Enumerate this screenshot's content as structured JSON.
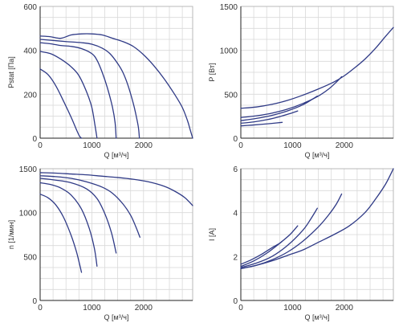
{
  "chart_data": [
    {
      "type": "line",
      "xlabel": "Q [м³/ч]",
      "ylabel": "Pstat [Па]",
      "xlim": [
        0,
        2950
      ],
      "ylim": [
        0,
        600
      ],
      "xticks": [
        0,
        1000,
        2000
      ],
      "yticks": [
        0,
        200,
        400,
        600
      ],
      "grid": true,
      "series": [
        {
          "x": [
            0,
            150,
            300,
            450,
            600,
            700,
            760,
            800
          ],
          "y": [
            315,
            290,
            240,
            170,
            95,
            40,
            10,
            0
          ]
        },
        {
          "x": [
            0,
            200,
            400,
            600,
            750,
            900,
            1000,
            1060,
            1100
          ],
          "y": [
            395,
            385,
            360,
            325,
            285,
            210,
            140,
            60,
            0
          ]
        },
        {
          "x": [
            0,
            200,
            400,
            600,
            800,
            1000,
            1100,
            1200,
            1300,
            1400,
            1450,
            1470
          ],
          "y": [
            435,
            430,
            422,
            418,
            408,
            385,
            355,
            300,
            230,
            140,
            70,
            0
          ]
        },
        {
          "x": [
            0,
            250,
            500,
            800,
            1000,
            1200,
            1350,
            1500,
            1600,
            1700,
            1800,
            1850,
            1900,
            1920
          ],
          "y": [
            450,
            445,
            440,
            435,
            428,
            410,
            385,
            340,
            300,
            240,
            160,
            110,
            50,
            0
          ]
        },
        {
          "x": [
            0,
            200,
            400,
            600,
            800,
            1000,
            1200,
            1400,
            1600,
            1800,
            2000,
            2200,
            2400,
            2600,
            2750,
            2850,
            2900,
            2950
          ],
          "y": [
            465,
            462,
            455,
            470,
            475,
            475,
            470,
            455,
            440,
            418,
            380,
            330,
            270,
            200,
            140,
            80,
            40,
            0
          ]
        }
      ]
    },
    {
      "type": "line",
      "xlabel": "Q [м³/ч]",
      "ylabel": "P [Вт]",
      "xlim": [
        0,
        2950
      ],
      "ylim": [
        0,
        1500
      ],
      "xticks": [
        0,
        1000,
        2000
      ],
      "yticks": [
        0,
        500,
        1000,
        1500
      ],
      "grid": true,
      "series": [
        {
          "x": [
            0,
            200,
            400,
            600,
            800
          ],
          "y": [
            140,
            148,
            158,
            168,
            180
          ]
        },
        {
          "x": [
            0,
            250,
            500,
            750,
            950,
            1100
          ],
          "y": [
            170,
            185,
            210,
            245,
            280,
            310
          ]
        },
        {
          "x": [
            0,
            300,
            600,
            900,
            1200,
            1400,
            1480
          ],
          "y": [
            200,
            225,
            260,
            310,
            380,
            450,
            480
          ]
        },
        {
          "x": [
            0,
            300,
            600,
            900,
            1200,
            1500,
            1700,
            1850,
            1950
          ],
          "y": [
            235,
            255,
            285,
            330,
            395,
            480,
            560,
            640,
            700
          ]
        },
        {
          "x": [
            0,
            300,
            600,
            900,
            1200,
            1500,
            1800,
            2000,
            2200,
            2400,
            2600,
            2800,
            2950
          ],
          "y": [
            340,
            355,
            385,
            430,
            490,
            560,
            640,
            710,
            800,
            900,
            1020,
            1160,
            1260
          ]
        }
      ]
    },
    {
      "type": "line",
      "xlabel": "Q [м³/ч]",
      "ylabel": "n [1/мин]",
      "xlim": [
        0,
        2950
      ],
      "ylim": [
        0,
        1500
      ],
      "xticks": [
        0,
        1000,
        2000
      ],
      "yticks": [
        0,
        500,
        1000,
        1500
      ],
      "grid": true,
      "series": [
        {
          "x": [
            0,
            150,
            300,
            450,
            600,
            700,
            760,
            800
          ],
          "y": [
            1210,
            1170,
            1090,
            950,
            740,
            560,
            420,
            320
          ]
        },
        {
          "x": [
            0,
            200,
            400,
            600,
            800,
            950,
            1050,
            1100
          ],
          "y": [
            1340,
            1320,
            1280,
            1200,
            1040,
            820,
            590,
            390
          ]
        },
        {
          "x": [
            0,
            300,
            600,
            900,
            1100,
            1250,
            1380,
            1470
          ],
          "y": [
            1390,
            1370,
            1340,
            1270,
            1160,
            990,
            770,
            540
          ]
        },
        {
          "x": [
            0,
            300,
            600,
            900,
            1200,
            1400,
            1600,
            1750,
            1850,
            1930
          ],
          "y": [
            1420,
            1410,
            1390,
            1350,
            1290,
            1220,
            1100,
            970,
            840,
            720
          ]
        },
        {
          "x": [
            0,
            300,
            600,
            900,
            1200,
            1500,
            1800,
            2100,
            2400,
            2600,
            2800,
            2950
          ],
          "y": [
            1455,
            1450,
            1440,
            1430,
            1415,
            1400,
            1380,
            1350,
            1300,
            1245,
            1170,
            1080
          ]
        }
      ]
    },
    {
      "type": "line",
      "xlabel": "Q [м³/ч]",
      "ylabel": "I [A]",
      "xlim": [
        0,
        2950
      ],
      "ylim": [
        0,
        6
      ],
      "xticks": [
        0,
        1000,
        2000
      ],
      "yticks": [
        0,
        2,
        4,
        6
      ],
      "grid": true,
      "series": [
        {
          "x": [
            0,
            200,
            400,
            600,
            750,
            800
          ],
          "y": [
            1.65,
            1.85,
            2.1,
            2.4,
            2.6,
            2.7
          ]
        },
        {
          "x": [
            0,
            250,
            500,
            750,
            950,
            1100
          ],
          "y": [
            1.55,
            1.8,
            2.15,
            2.6,
            3.0,
            3.4
          ]
        },
        {
          "x": [
            0,
            300,
            600,
            900,
            1200,
            1350,
            1480
          ],
          "y": [
            1.5,
            1.7,
            2.0,
            2.5,
            3.2,
            3.7,
            4.2
          ]
        },
        {
          "x": [
            0,
            300,
            600,
            900,
            1200,
            1500,
            1700,
            1850,
            1950
          ],
          "y": [
            1.45,
            1.6,
            1.85,
            2.2,
            2.7,
            3.35,
            3.9,
            4.4,
            4.85
          ]
        },
        {
          "x": [
            0,
            300,
            600,
            900,
            1200,
            1500,
            1800,
            2100,
            2400,
            2600,
            2800,
            2950
          ],
          "y": [
            1.45,
            1.6,
            1.8,
            2.05,
            2.3,
            2.65,
            3.0,
            3.4,
            4.0,
            4.6,
            5.3,
            6.0
          ]
        }
      ]
    }
  ]
}
